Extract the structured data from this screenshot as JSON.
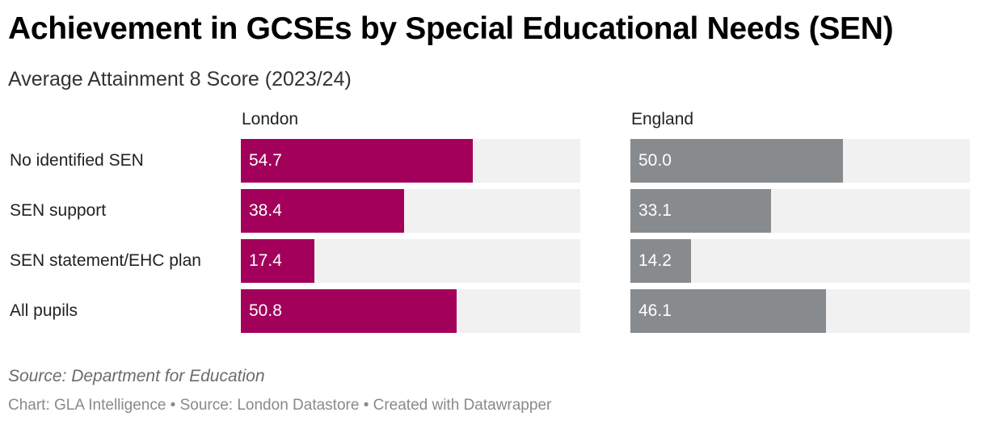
{
  "chart_data": {
    "type": "bar",
    "title": "Achievement in GCSEs by Special Educational Needs  (SEN)",
    "subtitle": "Average Attainment 8 Score (2023/24)",
    "categories": [
      "No identified SEN",
      "SEN support",
      "SEN statement/EHC plan",
      "All pupils"
    ],
    "series": [
      {
        "name": "London",
        "values": [
          54.7,
          38.4,
          17.4,
          50.8
        ],
        "color": "#a2005a"
      },
      {
        "name": "England",
        "values": [
          50.0,
          33.1,
          14.2,
          46.1
        ],
        "color": "#878b8d"
      }
    ],
    "value_labels": [
      [
        "54.7",
        "38.4",
        "17.4",
        "50.8"
      ],
      [
        "50.0",
        "33.1",
        "14.2",
        "46.1"
      ]
    ],
    "xlim": [
      0,
      80
    ],
    "track_color": "#f1f1f1",
    "layout": "small-multiples",
    "grid": false
  },
  "footer": {
    "source_note": "Source: Department for Education",
    "credit": "Chart: GLA Intelligence • Source: London Datastore • Created with Datawrapper"
  }
}
